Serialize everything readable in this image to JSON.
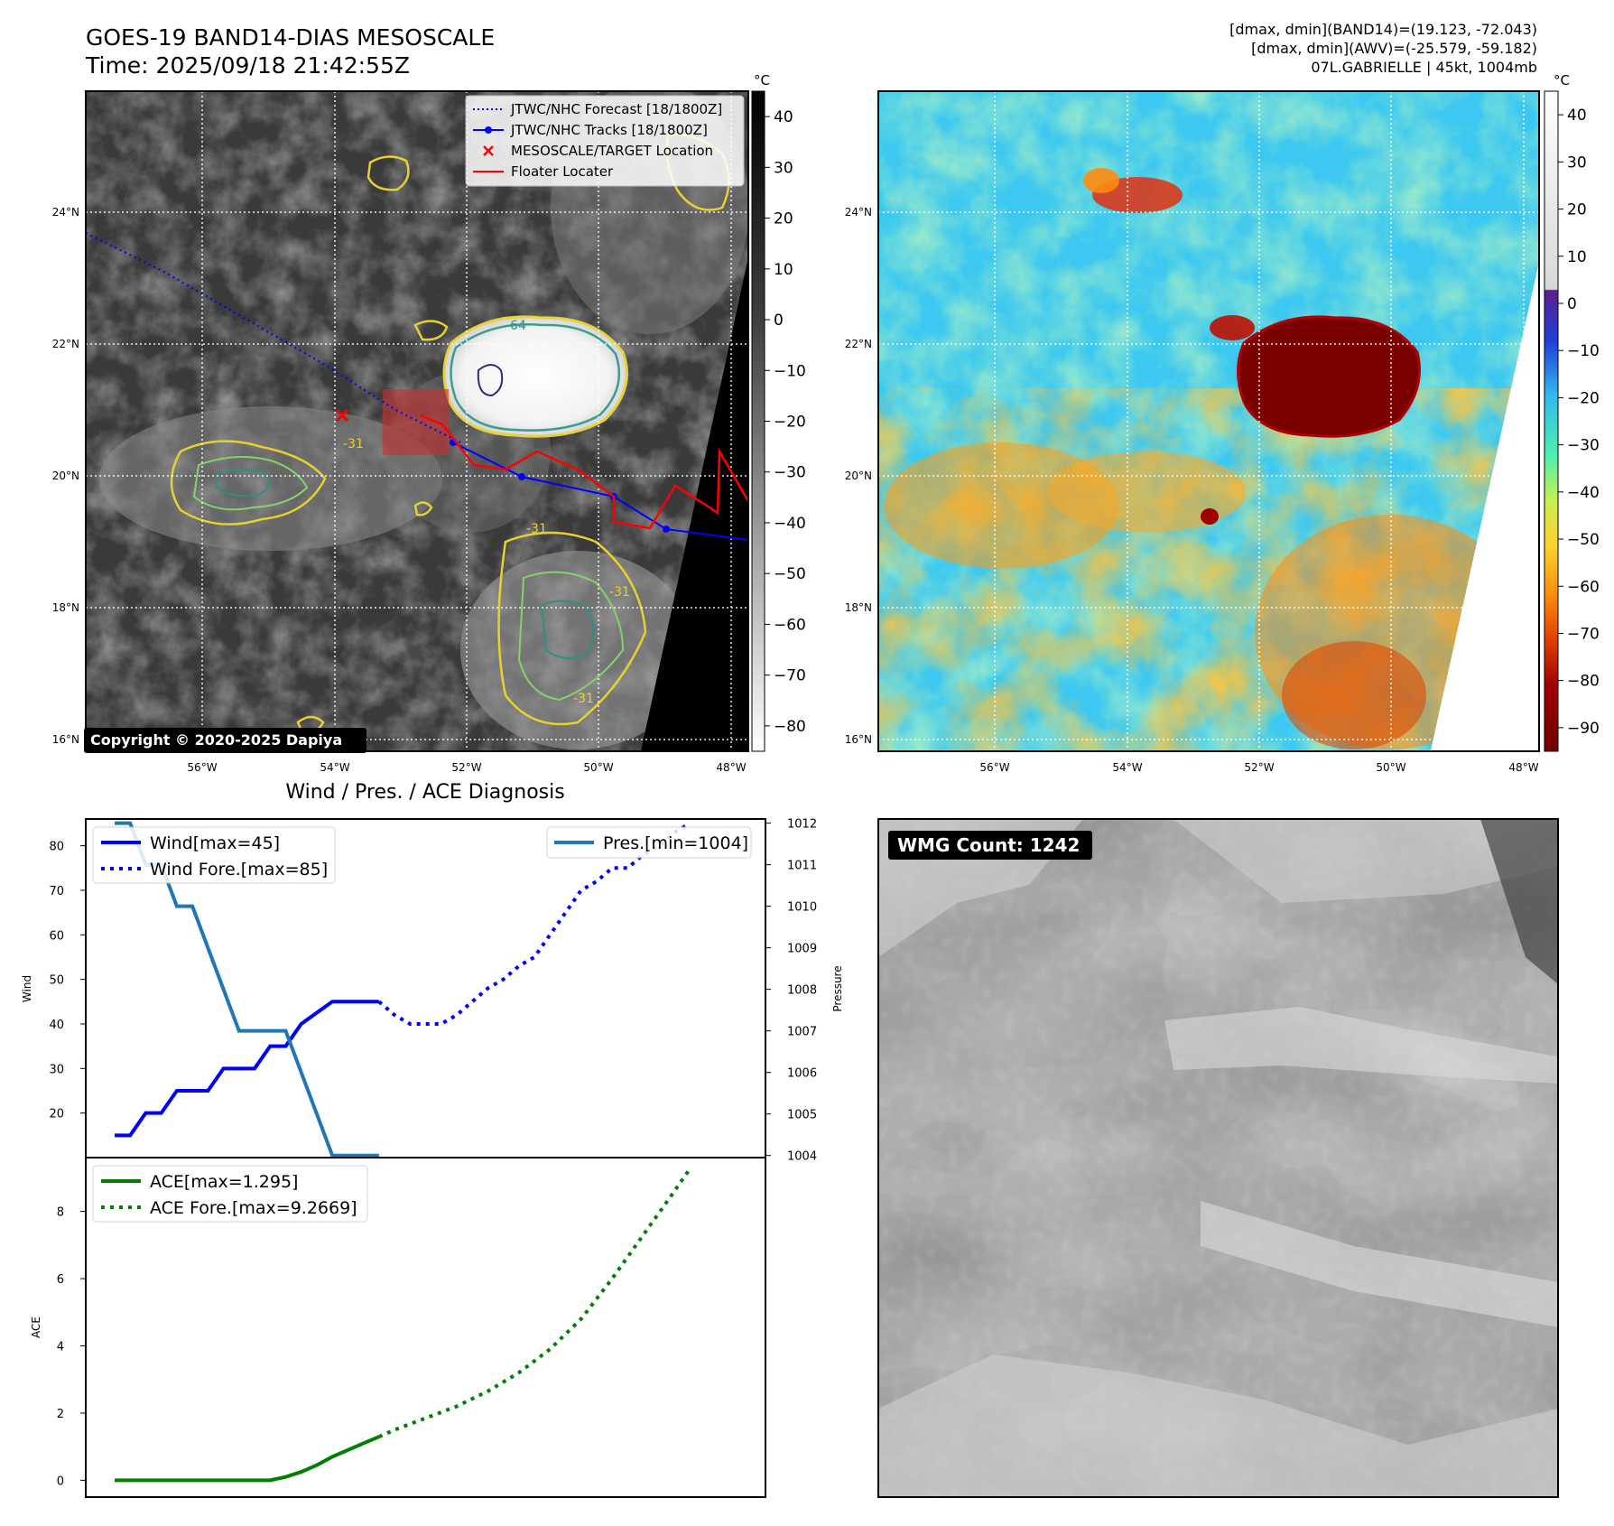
{
  "header": {
    "title_line1": "GOES-19 BAND14-DIAS MESOSCALE",
    "title_line2": "Time: 2025/09/18 21:42:55Z",
    "info_line1": "[dmax, dmin](BAND14)=(19.123, -72.043)",
    "info_line2": "[dmax, dmin](AWV)=(-25.579, -59.182)",
    "info_line3": "07L.GABRIELLE | 45kt, 1004mb"
  },
  "maps": {
    "lat_ticks": [
      "24°N",
      "22°N",
      "20°N",
      "18°N",
      "16°N"
    ],
    "lon_ticks": [
      "56°W",
      "54°W",
      "52°W",
      "50°W",
      "48°W"
    ],
    "copyright": "Copyright © 2020-2025 Dapiya",
    "contour_labels": [
      "-64",
      "-31",
      "-31",
      "-31",
      "-31"
    ],
    "legend": [
      {
        "label": "JTWC/NHC Forecast [18/1800Z]",
        "color": "#0000ff",
        "style": "dotted"
      },
      {
        "label": "JTWC/NHC Tracks [18/1800Z]",
        "color": "#0000ff",
        "style": "line-dot"
      },
      {
        "label": "MESOSCALE/TARGET Location",
        "color": "#ff0000",
        "style": "x"
      },
      {
        "label": "Floater Locater",
        "color": "#ff0000",
        "style": "line"
      }
    ],
    "colorbar_left": {
      "unit": "°C",
      "ticks": [
        "40",
        "30",
        "20",
        "10",
        "0",
        "−10",
        "−20",
        "−30",
        "−40",
        "−50",
        "−60",
        "−70",
        "−80"
      ]
    },
    "colorbar_right": {
      "unit": "°C",
      "ticks": [
        "40",
        "30",
        "20",
        "10",
        "0",
        "−10",
        "−20",
        "−30",
        "−40",
        "−50",
        "−60",
        "−70",
        "−80",
        "−90"
      ]
    }
  },
  "chart_data": [
    {
      "type": "line",
      "title": "Wind / Pres. / ACE Diagnosis",
      "ylabel": "Wind",
      "ylabel_right": "Pressure",
      "y_ticks": [
        "80",
        "70",
        "60",
        "50",
        "40",
        "30",
        "20"
      ],
      "y_ticks_right": [
        "1012",
        "1011",
        "1010",
        "1009",
        "1008",
        "1007",
        "1006",
        "1005",
        "1004"
      ],
      "ylim": [
        10,
        86
      ],
      "ylim_right": [
        1003.95,
        1012.1
      ],
      "series": [
        {
          "name": "Wind[max=45]",
          "color": "#0000ff",
          "style": "solid",
          "x": [
            0,
            0.5,
            1,
            1.5,
            2,
            3,
            3.5,
            4.5,
            5,
            5.5,
            6,
            7,
            8,
            8.5
          ],
          "values": [
            15,
            15,
            20,
            20,
            25,
            25,
            30,
            30,
            35,
            35,
            40,
            45,
            45,
            45
          ]
        },
        {
          "name": "Wind Fore.[max=85]",
          "color": "#0000ff",
          "style": "dotted",
          "x": [
            8.5,
            9,
            9.5,
            10,
            10.5,
            11,
            11.5,
            12,
            12.5,
            13,
            13.5,
            14,
            14.5,
            15,
            15.5,
            16,
            16.5,
            17,
            17.5,
            18,
            18.5
          ],
          "values": [
            45,
            42,
            40,
            40,
            40,
            42,
            45,
            48,
            50,
            53,
            55,
            60,
            65,
            70,
            72,
            75,
            75,
            78,
            80,
            83,
            85
          ]
        },
        {
          "name": "Pres.[min=1004]",
          "color": "#1f77b4",
          "style": "solid",
          "axis": "right",
          "x": [
            0,
            0.5,
            1,
            1.5,
            2,
            2.5,
            3,
            4,
            4.5,
            5,
            5.5,
            6,
            6.5,
            7,
            7.5,
            8,
            8.5
          ],
          "values": [
            1012,
            1012,
            1011,
            1011,
            1010,
            1010,
            1009,
            1007,
            1007,
            1007,
            1007,
            1006,
            1005,
            1004,
            1004,
            1004,
            1004
          ]
        }
      ],
      "legend_left": [
        "Wind[max=45]",
        "Wind Fore.[max=85]"
      ],
      "legend_right": [
        "Pres.[min=1004]"
      ]
    },
    {
      "type": "line",
      "ylabel": "ACE",
      "y_ticks": [
        "8",
        "6",
        "4",
        "2",
        "0"
      ],
      "ylim": [
        -0.5,
        9.6
      ],
      "series": [
        {
          "name": "ACE[max=1.295]",
          "color": "#008000",
          "style": "solid",
          "x": [
            0,
            1,
            2,
            3,
            4,
            5,
            5.5,
            6,
            6.5,
            7,
            7.5,
            8,
            8.5
          ],
          "values": [
            0,
            0,
            0,
            0,
            0,
            0,
            0.1,
            0.25,
            0.45,
            0.7,
            0.9,
            1.1,
            1.295
          ]
        },
        {
          "name": "ACE Fore.[max=9.2669]",
          "color": "#008000",
          "style": "dotted",
          "x": [
            8.5,
            9,
            10,
            11,
            12,
            13,
            14,
            15,
            16,
            17,
            18,
            18.5
          ],
          "values": [
            1.295,
            1.5,
            1.85,
            2.2,
            2.65,
            3.2,
            3.9,
            4.8,
            6.0,
            7.3,
            8.6,
            9.2669
          ]
        }
      ],
      "legend": [
        "ACE[max=1.295]",
        "ACE Fore.[max=9.2669]"
      ]
    }
  ],
  "wmg": {
    "label": "WMG Count: 1242"
  }
}
